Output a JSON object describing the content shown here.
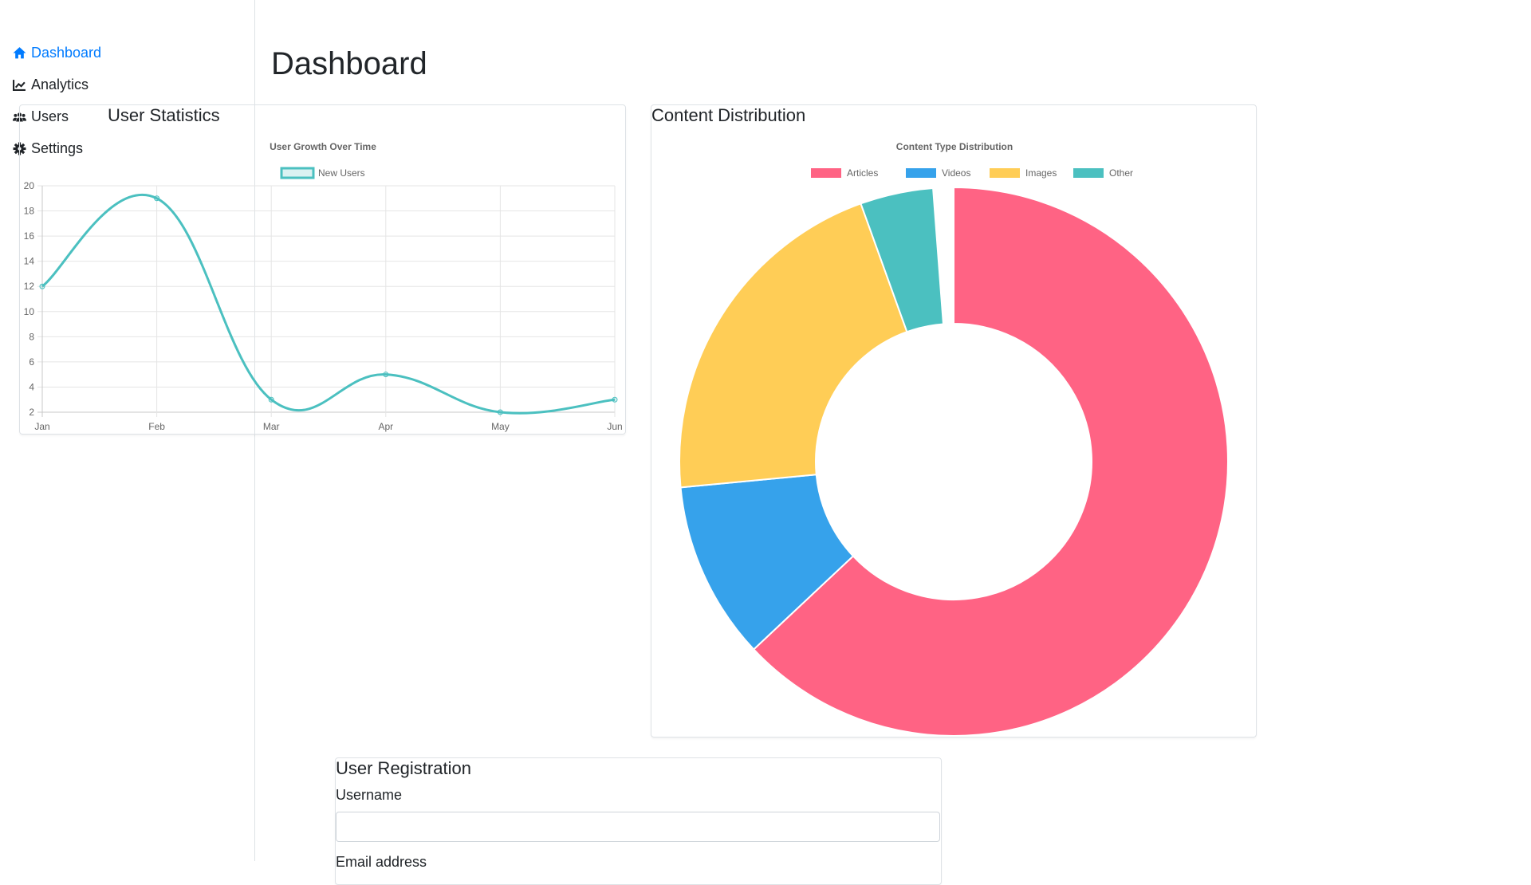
{
  "sidebar": {
    "items": [
      {
        "label": "Dashboard",
        "icon": "home-icon",
        "active": true
      },
      {
        "label": "Analytics",
        "icon": "chart-line-icon"
      },
      {
        "label": "Users",
        "icon": "users-icon"
      },
      {
        "label": "Settings",
        "icon": "gear-icon"
      }
    ]
  },
  "page": {
    "title": "Dashboard"
  },
  "user_stats": {
    "title": "User Statistics"
  },
  "content_dist": {
    "title": "Content Distribution"
  },
  "registration": {
    "title": "User Registration",
    "username_label": "Username",
    "username_value": "",
    "email_label": "Email address"
  },
  "colors": {
    "accent": "#007bff",
    "teal": "#4bc0c0",
    "pink": "#ff6384",
    "blue": "#36a2eb",
    "yellow": "#ffcd56"
  },
  "chart_data": [
    {
      "type": "line",
      "title": "User Growth Over Time",
      "categories": [
        "Jan",
        "Feb",
        "Mar",
        "Apr",
        "May",
        "Jun"
      ],
      "series": [
        {
          "name": "New Users",
          "values": [
            12,
            19,
            3,
            5,
            2,
            3
          ],
          "color": "#4bc0c0"
        }
      ],
      "ylim": [
        2,
        20
      ],
      "yticks": [
        "20",
        "18",
        "16",
        "14",
        "12",
        "10",
        "8",
        "6",
        "4",
        "2"
      ],
      "grid": true,
      "legend": "top"
    },
    {
      "type": "pie",
      "variant": "doughnut",
      "title": "Content Type Distribution",
      "categories": [
        "Articles",
        "Videos",
        "Images",
        "Other"
      ],
      "values": [
        63,
        10.5,
        21,
        4.3
      ],
      "colors": [
        "#ff6384",
        "#36a2eb",
        "#ffcd56",
        "#4bc0c0"
      ],
      "legend": "top"
    }
  ]
}
